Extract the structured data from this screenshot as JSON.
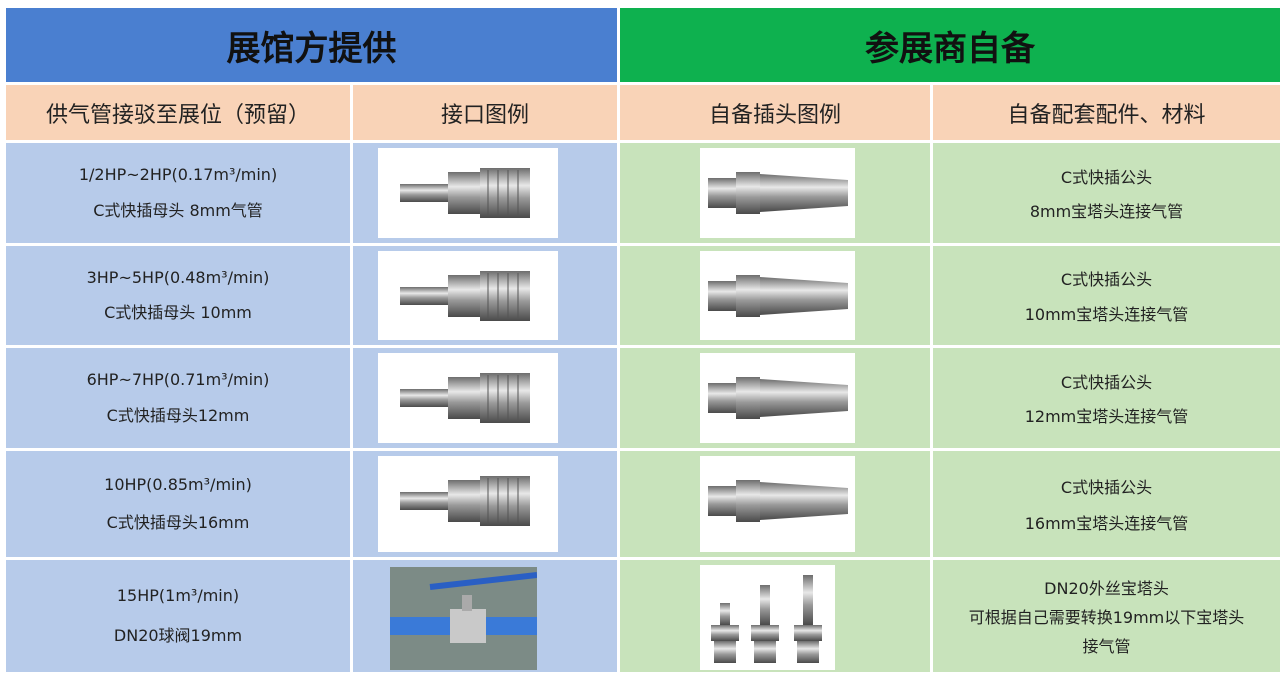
{
  "header": {
    "provided": "展馆方提供",
    "self": "参展商自备"
  },
  "columns": [
    "供气管接驳至展位（预留）",
    "接口图例",
    "自备插头图例",
    "自备配套配件、材料"
  ],
  "rows": [
    {
      "supply": [
        "1/2HP~2HP(0.17m³/min)",
        "C式快插母头 8mm气管"
      ],
      "materials": [
        "C式快插公头",
        "8mm宝塔头连接气管"
      ]
    },
    {
      "supply": [
        "3HP~5HP(0.48m³/min)",
        "C式快插母头 10mm"
      ],
      "materials": [
        "C式快插公头",
        "10mm宝塔头连接气管"
      ]
    },
    {
      "supply": [
        "6HP~7HP(0.71m³/min)",
        "C式快插母头12mm"
      ],
      "materials": [
        "C式快插公头",
        "12mm宝塔头连接气管"
      ]
    },
    {
      "supply": [
        "10HP(0.85m³/min)",
        "C式快插母头16mm"
      ],
      "materials": [
        "C式快插公头",
        "16mm宝塔头连接气管"
      ]
    },
    {
      "supply": [
        "15HP(1m³/min)",
        "DN20球阀19mm"
      ],
      "materials": [
        "DN20外丝宝塔头",
        "可根据自己需要转换19mm以下宝塔头",
        "接气管"
      ]
    }
  ]
}
